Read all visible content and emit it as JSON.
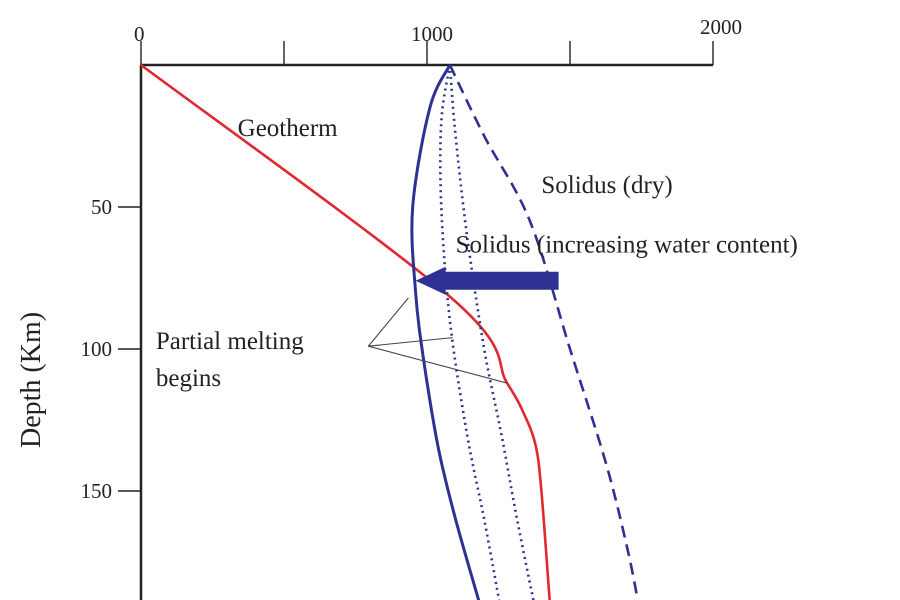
{
  "chart_data": {
    "type": "line",
    "title": "",
    "xlabel": "",
    "ylabel": "Depth (Km)",
    "xlim": [
      0,
      2000
    ],
    "ylim": [
      0,
      190
    ],
    "y_inverted": true,
    "x_axis_position": "top",
    "grid": false,
    "x_ticks": [
      0,
      500,
      1000,
      1500,
      2000
    ],
    "x_tick_labels": [
      {
        "value": 0,
        "label": "0"
      },
      {
        "value": 1000,
        "label": "1000"
      },
      {
        "value": 2000,
        "label": "2000"
      }
    ],
    "y_ticks": [
      50,
      100,
      150
    ],
    "y_tick_labels": [
      {
        "value": 50,
        "label": "50"
      },
      {
        "value": 100,
        "label": "100"
      },
      {
        "value": 150,
        "label": "150"
      }
    ],
    "series": [
      {
        "key": "geotherm",
        "color": "#e0282e",
        "style": "solid",
        "points": [
          [
            0,
            0
          ],
          [
            1085,
            82
          ],
          [
            1280,
            112
          ],
          [
            1340,
            123
          ],
          [
            1380,
            134
          ],
          [
            1400,
            150
          ],
          [
            1430,
            190
          ]
        ]
      },
      {
        "key": "solidus_wet_high",
        "color": "#2e3192",
        "style": "solid",
        "points": [
          [
            1080,
            0
          ],
          [
            1010,
            15
          ],
          [
            950,
            50
          ],
          [
            960,
            80
          ],
          [
            990,
            105
          ],
          [
            1040,
            135
          ],
          [
            1100,
            160
          ],
          [
            1185,
            190
          ]
        ]
      },
      {
        "key": "solidus_wet_mid",
        "color": "#2e3192",
        "style": "dotted",
        "points": [
          [
            1080,
            0
          ],
          [
            1050,
            20
          ],
          [
            1050,
            50
          ],
          [
            1080,
            90
          ],
          [
            1140,
            130
          ],
          [
            1200,
            160
          ],
          [
            1255,
            190
          ]
        ]
      },
      {
        "key": "solidus_wet_low",
        "color": "#2e3192",
        "style": "dotted",
        "points": [
          [
            1080,
            0
          ],
          [
            1100,
            25
          ],
          [
            1140,
            60
          ],
          [
            1200,
            100
          ],
          [
            1260,
            130
          ],
          [
            1315,
            160
          ],
          [
            1375,
            190
          ]
        ]
      },
      {
        "key": "solidus_dry",
        "color": "#2e3192",
        "style": "dashed",
        "points": [
          [
            1080,
            0
          ],
          [
            1200,
            25
          ],
          [
            1360,
            55
          ],
          [
            1500,
            100
          ],
          [
            1625,
            140
          ],
          [
            1700,
            170
          ],
          [
            1740,
            190
          ]
        ]
      }
    ],
    "annotations": [
      {
        "key": "geotherm",
        "text": "Geotherm",
        "x": 338,
        "y": 25
      },
      {
        "key": "dry",
        "text": "Solidus (dry)",
        "x": 1400,
        "y": 45
      },
      {
        "key": "wet",
        "text": "Solidus (increasing water content)",
        "x": 1100,
        "y": 66
      },
      {
        "key": "melt1",
        "text": "Partial melting",
        "x": 52,
        "y": 100
      },
      {
        "key": "melt2",
        "text": "begins",
        "x": 52,
        "y": 113
      }
    ],
    "melting_points": [
      [
        935,
        82
      ],
      [
        1090,
        96
      ],
      [
        1280,
        112
      ]
    ],
    "melting_callout_origin": [
      795,
      99
    ],
    "arrow": {
      "color": "#2e3192",
      "from": [
        1460,
        76
      ],
      "to": [
        960,
        76
      ],
      "meaning": "increasing water content"
    }
  }
}
